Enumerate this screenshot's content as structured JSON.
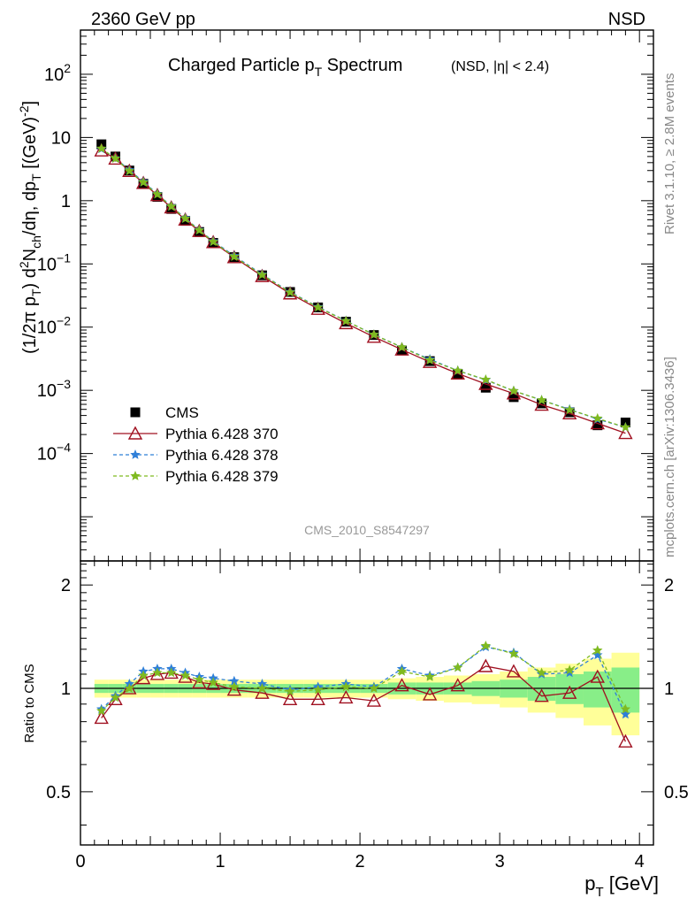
{
  "header": {
    "left": "2360 GeV pp",
    "right": "NSD"
  },
  "side_labels": {
    "rivet": "Rivet 3.1.10, ≥ 2.8M events",
    "source": "mcplots.cern.ch [arXiv:1306.3436]"
  },
  "analysis_id": "CMS_2010_S8547297",
  "chart_data": [
    {
      "type": "line",
      "title": "Charged Particle p_T Spectrum",
      "subtitle": "(NSD, |η| < 2.4)",
      "ylabel": "(1/2π p_T) d²N_ch/dη, dp_T [(GeV)⁻²]",
      "yscale": "log",
      "xlim": [
        0,
        4.1
      ],
      "ylim": [
        2e-06,
        500
      ],
      "yticks": [
        "10^-4",
        "10^-3",
        "10^-2",
        "10^-1",
        "1",
        "10",
        "10^2"
      ],
      "legend_position": "lower-left",
      "x": [
        0.15,
        0.25,
        0.35,
        0.45,
        0.55,
        0.65,
        0.75,
        0.85,
        0.95,
        1.1,
        1.3,
        1.5,
        1.7,
        1.9,
        2.1,
        2.3,
        2.5,
        2.7,
        2.9,
        3.1,
        3.3,
        3.5,
        3.7,
        3.9
      ],
      "series": [
        {
          "name": "CMS",
          "color": "#000000",
          "marker": "square",
          "values": [
            7.8,
            5.0,
            3.0,
            1.85,
            1.15,
            0.74,
            0.48,
            0.32,
            0.215,
            0.128,
            0.066,
            0.036,
            0.0205,
            0.0122,
            0.0075,
            0.0043,
            0.0029,
            0.0018,
            0.0011,
            0.00078,
            0.00062,
            0.00045,
            0.00028,
            0.00031
          ]
        },
        {
          "name": "Pythia 6.428 370",
          "color": "#a01020",
          "marker": "triangle-open",
          "dash": "solid",
          "values": [
            6.2,
            4.6,
            2.95,
            1.9,
            1.22,
            0.78,
            0.5,
            0.33,
            0.22,
            0.127,
            0.064,
            0.034,
            0.0194,
            0.0115,
            0.007,
            0.0044,
            0.0028,
            0.00184,
            0.00126,
            0.00089,
            0.00059,
            0.00043,
            0.0003,
            0.00021
          ]
        },
        {
          "name": "Pythia 6.428 378",
          "color": "#2f7fd8",
          "marker": "star",
          "dash": "dashed",
          "values": [
            6.6,
            4.7,
            3.05,
            2.0,
            1.28,
            0.82,
            0.53,
            0.345,
            0.229,
            0.134,
            0.068,
            0.036,
            0.0208,
            0.0126,
            0.0076,
            0.0048,
            0.0031,
            0.00205,
            0.00146,
            0.00098,
            0.0007,
            0.0005,
            0.00035,
            0.00026
          ]
        },
        {
          "name": "Pythia 6.428 379",
          "color": "#7fba20",
          "marker": "star",
          "dash": "dashed",
          "values": [
            6.7,
            4.65,
            2.95,
            1.95,
            1.26,
            0.81,
            0.52,
            0.34,
            0.224,
            0.13,
            0.067,
            0.0355,
            0.0205,
            0.0125,
            0.0076,
            0.0048,
            0.003,
            0.00205,
            0.00148,
            0.00098,
            0.0007,
            0.00049,
            0.00036,
            0.00026
          ]
        }
      ]
    },
    {
      "type": "line",
      "title": "",
      "xlabel": "p_T [GeV]",
      "ylabel": "Ratio to CMS",
      "xlim": [
        0,
        4.1
      ],
      "ylim": [
        0.35,
        2.35
      ],
      "yticks": [
        0.5,
        1,
        2
      ],
      "xticks": [
        0,
        1,
        2,
        3,
        4
      ],
      "reference_line": 1,
      "bands": {
        "edges": [
          0.1,
          0.2,
          0.3,
          0.4,
          0.5,
          0.6,
          0.7,
          0.8,
          0.9,
          1.0,
          1.2,
          1.4,
          1.6,
          1.8,
          2.0,
          2.2,
          2.4,
          2.6,
          2.8,
          3.0,
          3.2,
          3.4,
          3.6,
          3.8,
          4.0
        ],
        "inner_halfwidth": [
          0.03,
          0.03,
          0.03,
          0.03,
          0.03,
          0.03,
          0.03,
          0.03,
          0.03,
          0.03,
          0.03,
          0.03,
          0.03,
          0.03,
          0.03,
          0.04,
          0.04,
          0.04,
          0.05,
          0.06,
          0.08,
          0.1,
          0.12,
          0.15
        ],
        "outer_halfwidth": [
          0.06,
          0.06,
          0.06,
          0.06,
          0.06,
          0.06,
          0.06,
          0.06,
          0.06,
          0.06,
          0.06,
          0.06,
          0.06,
          0.06,
          0.06,
          0.07,
          0.08,
          0.09,
          0.1,
          0.12,
          0.15,
          0.18,
          0.22,
          0.27
        ],
        "inner_color": "#88ee88",
        "outer_color": "#ffff99"
      },
      "x": [
        0.15,
        0.25,
        0.35,
        0.45,
        0.55,
        0.65,
        0.75,
        0.85,
        0.95,
        1.1,
        1.3,
        1.5,
        1.7,
        1.9,
        2.1,
        2.3,
        2.5,
        2.7,
        2.9,
        3.1,
        3.3,
        3.5,
        3.7,
        3.9
      ],
      "series": [
        {
          "name": "Pythia 6.428 370",
          "color": "#a01020",
          "marker": "triangle-open",
          "dash": "solid",
          "values": [
            0.82,
            0.93,
            1.0,
            1.07,
            1.1,
            1.11,
            1.08,
            1.04,
            1.03,
            0.99,
            0.97,
            0.93,
            0.93,
            0.94,
            0.92,
            1.02,
            0.96,
            1.02,
            1.16,
            1.12,
            0.95,
            0.97,
            1.08,
            0.7
          ]
        },
        {
          "name": "Pythia 6.428 378",
          "color": "#2f7fd8",
          "marker": "star",
          "dash": "dashed",
          "values": [
            0.87,
            0.95,
            1.03,
            1.12,
            1.14,
            1.14,
            1.11,
            1.08,
            1.07,
            1.05,
            1.03,
            0.99,
            1.01,
            1.03,
            1.01,
            1.14,
            1.09,
            1.15,
            1.32,
            1.27,
            1.1,
            1.11,
            1.25,
            0.84
          ]
        },
        {
          "name": "Pythia 6.428 379",
          "color": "#7fba20",
          "marker": "star",
          "dash": "dashed",
          "values": [
            0.86,
            0.94,
            1.0,
            1.09,
            1.11,
            1.11,
            1.09,
            1.06,
            1.04,
            1.01,
            1.0,
            0.98,
            0.99,
            1.01,
            1.0,
            1.12,
            1.08,
            1.15,
            1.33,
            1.26,
            1.11,
            1.13,
            1.29,
            0.87
          ]
        }
      ]
    }
  ]
}
